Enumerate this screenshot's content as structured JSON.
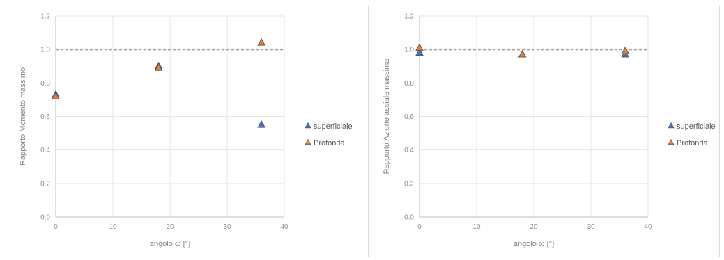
{
  "chart_data": [
    {
      "type": "scatter",
      "title": "",
      "xlabel": "angolo ω [°]",
      "ylabel": "Rapporto Momento massimo",
      "xlim": [
        0,
        40
      ],
      "ylim": [
        0,
        1.2
      ],
      "x_ticks": [
        "0",
        "10",
        "20",
        "30",
        "40"
      ],
      "y_ticks": [
        "0.0",
        "0.2",
        "0.4",
        "0.6",
        "0.8",
        "1.0",
        "1.2"
      ],
      "grid": true,
      "legend_position": "right",
      "reference_line": {
        "y": 1.0,
        "x": [
          0,
          40
        ],
        "style": "dashed",
        "color": "#a5a5a5"
      },
      "series": [
        {
          "name": "superficiale",
          "marker": "triangle",
          "color": "#4472c4",
          "x": [
            0,
            18,
            36
          ],
          "y": [
            0.73,
            0.9,
            0.55
          ]
        },
        {
          "name": "Profonda",
          "marker": "triangle",
          "color": "#ed7d31",
          "x": [
            0,
            18,
            36
          ],
          "y": [
            0.72,
            0.89,
            1.04
          ]
        }
      ]
    },
    {
      "type": "scatter",
      "title": "",
      "xlabel": "angolo ω [°]",
      "ylabel": "Rapporto Azione assiale massima",
      "xlim": [
        0,
        40
      ],
      "ylim": [
        0,
        1.2
      ],
      "x_ticks": [
        "0",
        "10",
        "20",
        "30",
        "40"
      ],
      "y_ticks": [
        "0.0",
        "0.2",
        "0.4",
        "0.6",
        "0.8",
        "1.0",
        "1.2"
      ],
      "grid": true,
      "legend_position": "right",
      "reference_line": {
        "y": 1.0,
        "x": [
          0,
          40
        ],
        "style": "dashed",
        "color": "#a5a5a5"
      },
      "series": [
        {
          "name": "superficiale",
          "marker": "triangle",
          "color": "#4472c4",
          "x": [
            0,
            18,
            36
          ],
          "y": [
            0.98,
            0.97,
            0.97
          ]
        },
        {
          "name": "Profonda",
          "marker": "triangle",
          "color": "#ed7d31",
          "x": [
            0,
            18,
            36
          ],
          "y": [
            1.01,
            0.97,
            0.99
          ]
        }
      ]
    }
  ]
}
